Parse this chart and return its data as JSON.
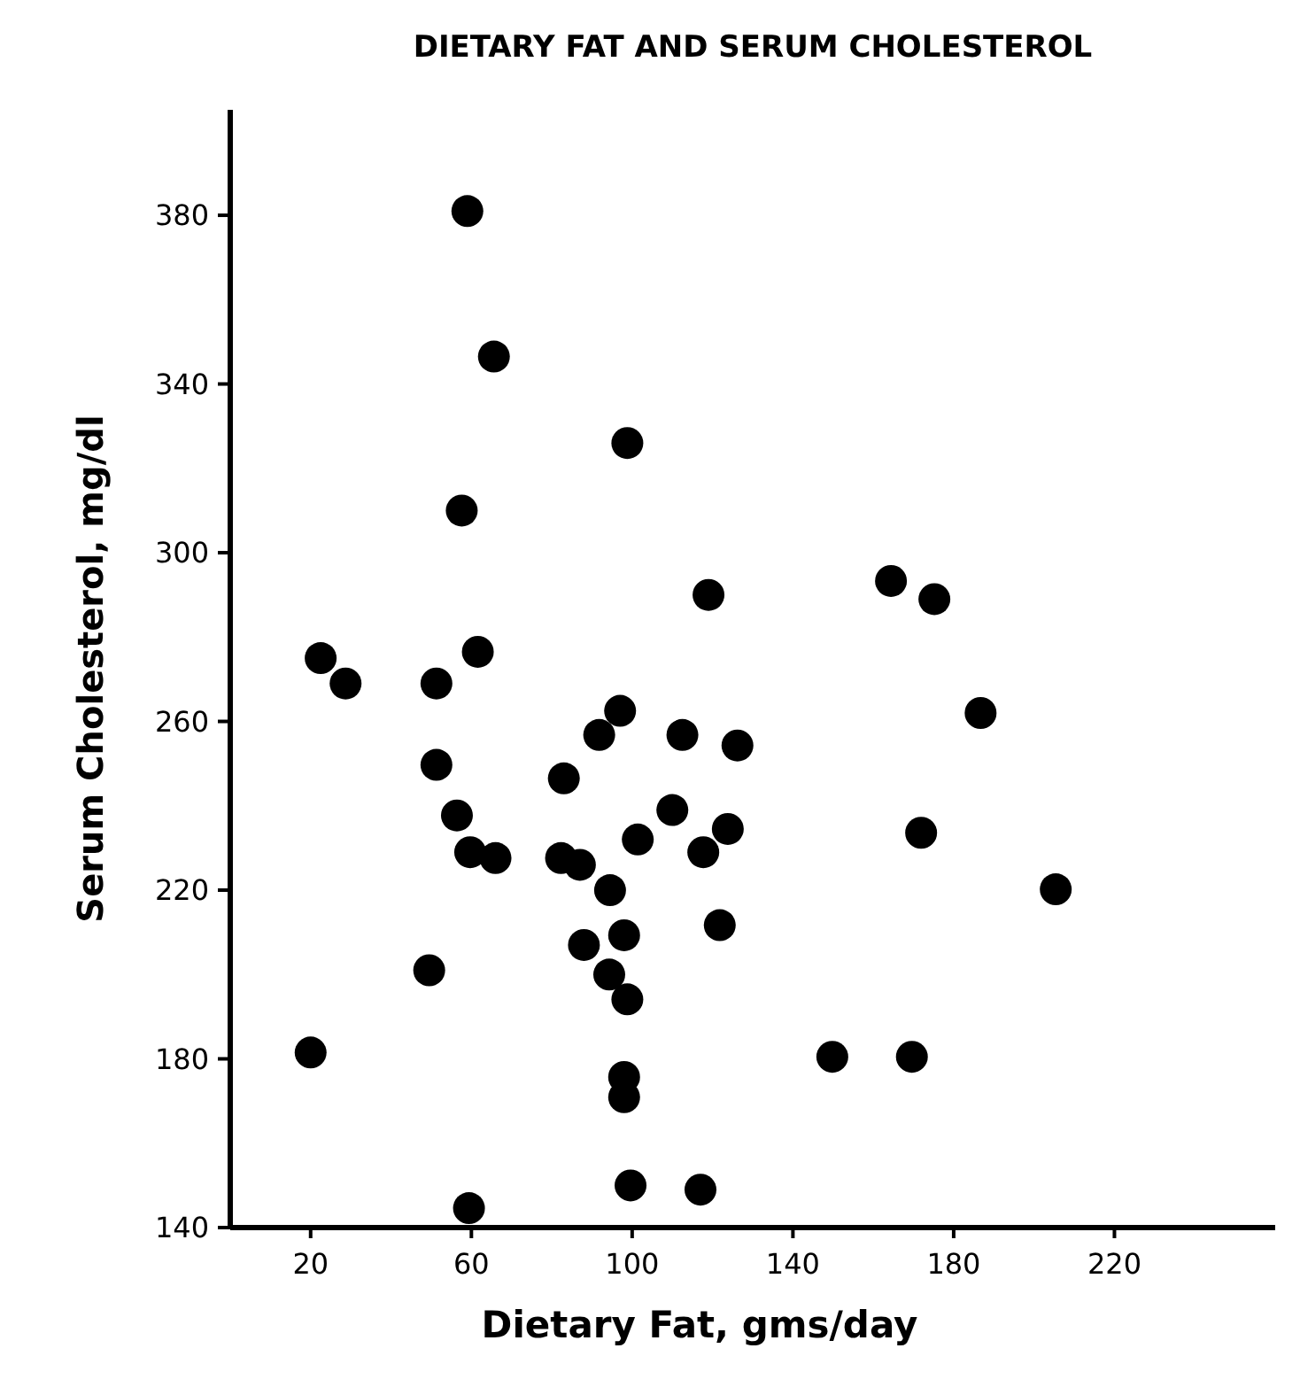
{
  "chart_data": {
    "type": "scatter",
    "title": "DIETARY FAT AND SERUM CHOLESTEROL",
    "xlabel": "Dietary Fat, gms/day",
    "ylabel": "Serum Cholesterol, mg/dl",
    "x": [
      59,
      65.6,
      98.8,
      57.6,
      119,
      22.5,
      28.7,
      51.3,
      61.6,
      97,
      91.8,
      112.5,
      51.3,
      83,
      110,
      101.4,
      56.4,
      59.7,
      66,
      82.3,
      87,
      94.5,
      88,
      98,
      94.3,
      98.8,
      49.5,
      20,
      98,
      98,
      99.6,
      59.4,
      117,
      164.4,
      175.2,
      186.7,
      126.2,
      123.8,
      117.7,
      171.9,
      205.4,
      121.8,
      149.8,
      169.6
    ],
    "values": [
      381,
      346.5,
      326,
      310,
      290,
      275,
      269,
      269,
      276.5,
      262.5,
      256.8,
      256.8,
      249.7,
      246.5,
      239,
      232,
      237.7,
      229,
      227.6,
      227.6,
      226,
      220,
      207,
      209.3,
      200,
      194.1,
      201,
      181.5,
      175.7,
      170.9,
      150,
      144.6,
      149,
      293.3,
      289,
      262,
      254.3,
      234.5,
      229,
      233.6,
      220.2,
      211.7,
      180.5,
      180.5
    ],
    "color": "#000000",
    "marker": "circle",
    "xlim": [
      0,
      260
    ],
    "xticks": [
      20,
      60,
      100,
      140,
      180,
      220
    ],
    "ylim": [
      140,
      405
    ],
    "yticks": [
      140,
      180,
      220,
      260,
      300,
      340,
      380
    ],
    "grid": false
  }
}
